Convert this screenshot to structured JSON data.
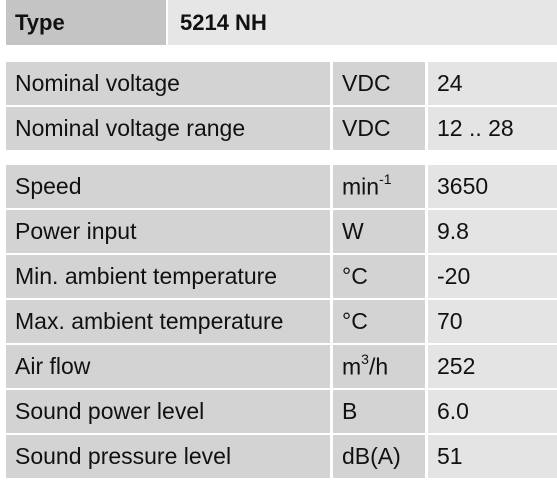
{
  "header": {
    "label": "Type",
    "value": "5214 NH"
  },
  "groups": [
    {
      "rows": [
        {
          "label": "Nominal voltage",
          "unit": {
            "base": "VDC"
          },
          "value": "24"
        },
        {
          "label": "Nominal voltage range",
          "unit": {
            "base": "VDC"
          },
          "value": "12 .. 28"
        }
      ]
    },
    {
      "rows": [
        {
          "label": "Speed",
          "unit": {
            "base": "min",
            "sup": "-1"
          },
          "value": "3650"
        },
        {
          "label": "Power input",
          "unit": {
            "base": "W"
          },
          "value": "9.8"
        },
        {
          "label": "Min. ambient temperature",
          "unit": {
            "base": "°C"
          },
          "value": "-20"
        },
        {
          "label": "Max. ambient temperature",
          "unit": {
            "base": "°C"
          },
          "value": "70"
        },
        {
          "label": "Air flow",
          "unit": {
            "base": "m",
            "sup": "3",
            "tail": "/h"
          },
          "value": "252"
        },
        {
          "label": "Sound power level",
          "unit": {
            "base": "B"
          },
          "value": "6.0"
        },
        {
          "label": "Sound pressure level",
          "unit": {
            "base": "dB(A)"
          },
          "value": "51"
        }
      ]
    }
  ]
}
